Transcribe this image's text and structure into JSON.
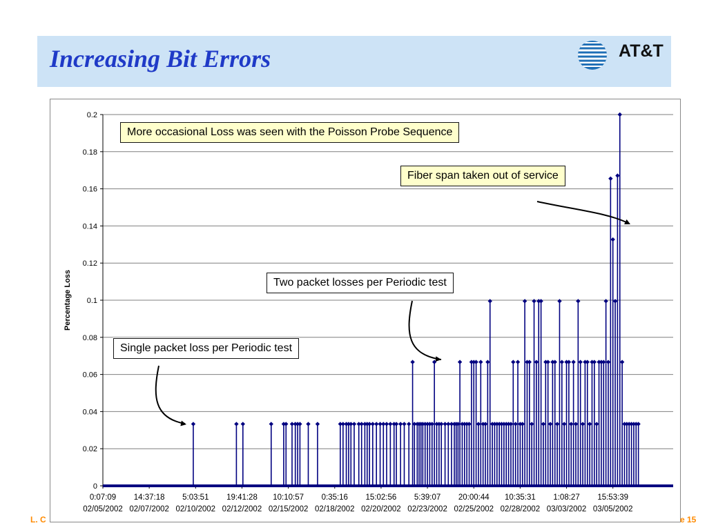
{
  "slide": {
    "title": "Increasing Bit Errors",
    "logo_text": "AT&T",
    "footer_left": "L. C",
    "footer_right": "e 15"
  },
  "colors": {
    "title_band": "#cde3f6",
    "title_text": "#1f3ac7",
    "series": "#000080",
    "callout_fill": "#ffffcc",
    "footer": "#ff8a00"
  },
  "callouts": {
    "poisson": "More occasional Loss was seen with the Poisson Probe Sequence",
    "fiber": "Fiber span taken out of service",
    "two_packet": "Two packet losses per Periodic test",
    "single_packet": "Single packet loss per Periodic test"
  },
  "chart_data": {
    "type": "line",
    "title": "",
    "ylabel": "Percentage Loss",
    "xlabel": "",
    "ylim": [
      0,
      0.2
    ],
    "yticks": [
      0,
      0.02,
      0.04,
      0.06,
      0.08,
      0.1,
      0.12,
      0.14,
      0.16,
      0.18,
      0.2
    ],
    "ytick_labels": [
      "0",
      "0.02",
      "0.04",
      "0.06",
      "0.08",
      "0.1",
      "0.12",
      "0.14",
      "0.16",
      "0.18",
      "0.2"
    ],
    "grid": true,
    "legend": false,
    "xticks": [
      {
        "time": "0:07:09",
        "date": "02/05/2002"
      },
      {
        "time": "14:37:18",
        "date": "02/07/2002"
      },
      {
        "time": "5:03:51",
        "date": "02/10/2002"
      },
      {
        "time": "19:41:28",
        "date": "02/12/2002"
      },
      {
        "time": "10:10:57",
        "date": "02/15/2002"
      },
      {
        "time": "0:35:16",
        "date": "02/18/2002"
      },
      {
        "time": "15:02:56",
        "date": "02/20/2002"
      },
      {
        "time": "5:39:07",
        "date": "02/23/2002"
      },
      {
        "time": "20:00:44",
        "date": "02/25/2002"
      },
      {
        "time": "10:35:31",
        "date": "02/28/2002"
      },
      {
        "time": "1:08:27",
        "date": "03/03/2002"
      },
      {
        "time": "15:53:39",
        "date": "03/05/2002"
      }
    ],
    "x_index_max": 12.3,
    "baseline_value": 0,
    "series": [
      {
        "marker": "diamond",
        "spikes_x": [
          1.95,
          2.88,
          3.02,
          3.63,
          3.9,
          3.95,
          4.08,
          4.15,
          4.2,
          4.25,
          4.43,
          4.63,
          5.12,
          5.18,
          5.25,
          5.3,
          5.35,
          5.42,
          5.52,
          5.58,
          5.65,
          5.7,
          5.75,
          5.82,
          5.9,
          5.98,
          6.05,
          6.12,
          6.2,
          6.28,
          6.33,
          6.42,
          6.5,
          6.6,
          6.68,
          6.72,
          6.78,
          6.82,
          6.86,
          6.9,
          6.95,
          7.0,
          7.05,
          7.1,
          7.15,
          7.2,
          7.25,
          7.3,
          7.38,
          7.45,
          7.52,
          7.58,
          7.62,
          7.66,
          7.7,
          7.75,
          7.8,
          7.85,
          7.9,
          7.95,
          8.0,
          8.05,
          8.1,
          8.15,
          8.2,
          8.25,
          8.3,
          8.35,
          8.4,
          8.45,
          8.5,
          8.55,
          8.6,
          8.65,
          8.7,
          8.75,
          8.8,
          8.85,
          8.9,
          8.95,
          9.0,
          9.05,
          9.1,
          9.15,
          9.2,
          9.25,
          9.3,
          9.35,
          9.4,
          9.45,
          9.5,
          9.55,
          9.6,
          9.65,
          9.7,
          9.75,
          9.8,
          9.85,
          9.9,
          9.95,
          10.0,
          10.05,
          10.1,
          10.15,
          10.2,
          10.25,
          10.3,
          10.35,
          10.4,
          10.45,
          10.5,
          10.55,
          10.6,
          10.65,
          10.7,
          10.75,
          10.8,
          10.85,
          10.9,
          10.95,
          11.0,
          11.05,
          11.1,
          11.15,
          11.2,
          11.25,
          11.3,
          11.35,
          11.4,
          11.45,
          11.5,
          11.55
        ],
        "spikes_y": [
          0.0333,
          0.0333,
          0.0333,
          0.0333,
          0.0333,
          0.0333,
          0.0333,
          0.0333,
          0.0333,
          0.0333,
          0.0333,
          0.0333,
          0.0333,
          0.0333,
          0.0333,
          0.0333,
          0.0333,
          0.0333,
          0.0333,
          0.0333,
          0.0333,
          0.0333,
          0.0333,
          0.0333,
          0.0333,
          0.0333,
          0.0333,
          0.0333,
          0.0333,
          0.0333,
          0.0333,
          0.0333,
          0.0333,
          0.0333,
          0.0667,
          0.0333,
          0.0333,
          0.0333,
          0.0333,
          0.0333,
          0.0333,
          0.0333,
          0.0333,
          0.0333,
          0.0667,
          0.0333,
          0.0333,
          0.0333,
          0.0333,
          0.0333,
          0.0333,
          0.0333,
          0.0333,
          0.0333,
          0.0667,
          0.0333,
          0.0333,
          0.0333,
          0.0333,
          0.0667,
          0.0667,
          0.0667,
          0.0333,
          0.0667,
          0.0333,
          0.0333,
          0.0667,
          0.0995,
          0.0333,
          0.0333,
          0.0333,
          0.0333,
          0.0333,
          0.0333,
          0.0333,
          0.0333,
          0.0333,
          0.0667,
          0.0333,
          0.0667,
          0.0333,
          0.0333,
          0.0995,
          0.0667,
          0.0667,
          0.0333,
          0.0995,
          0.0667,
          0.0995,
          0.0995,
          0.0333,
          0.0667,
          0.0667,
          0.0333,
          0.0667,
          0.0667,
          0.0333,
          0.0995,
          0.0667,
          0.0333,
          0.0667,
          0.0667,
          0.0333,
          0.0667,
          0.0333,
          0.0995,
          0.0667,
          0.0333,
          0.0667,
          0.0667,
          0.0333,
          0.0667,
          0.0667,
          0.0333,
          0.0667,
          0.0667,
          0.0667,
          0.0995,
          0.0667,
          0.1655,
          0.1327,
          0.0995,
          0.1671,
          0.2,
          0.0667,
          0.0333,
          0.0333,
          0.0333,
          0.0333,
          0.0333,
          0.0333,
          0.0333
        ]
      }
    ]
  }
}
